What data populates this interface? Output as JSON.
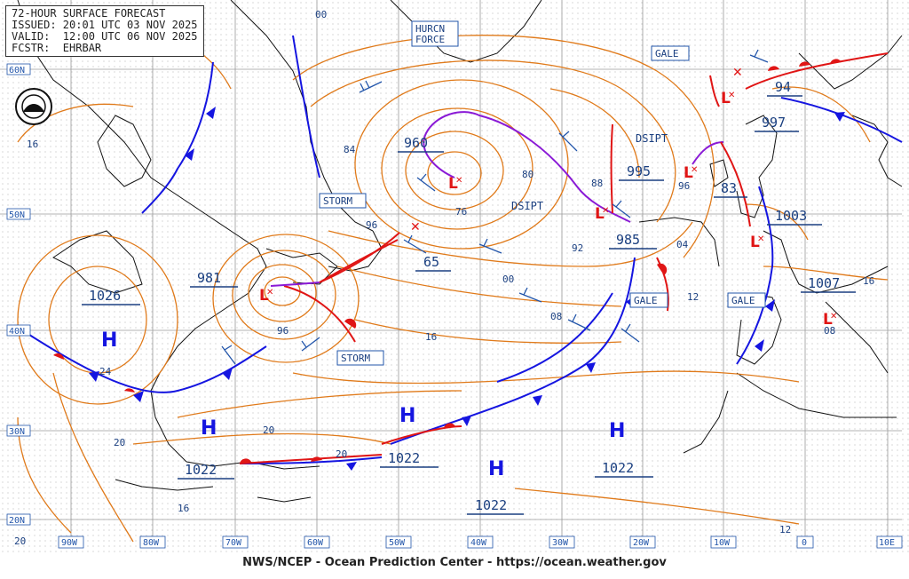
{
  "header": {
    "title": "72-HOUR SURFACE FORECAST",
    "issued": "ISSUED: 20:01 UTC 03 NOV 2025",
    "valid": "VALID:  12:00 UTC 06 NOV 2025",
    "forecaster": "FCSTR:  EHRBAR"
  },
  "footer": "NWS/NCEP - Ocean Prediction Center - https://ocean.weather.gov",
  "logo": "noaa-logo",
  "lat_labels": [
    "60N",
    "50N",
    "40N",
    "30N",
    "20N"
  ],
  "lon_labels": [
    "90W",
    "80W",
    "70W",
    "60W",
    "50W",
    "40W",
    "30W",
    "20W",
    "10W",
    "0",
    "10E"
  ],
  "pressure_centers": [
    {
      "type": "L",
      "value": "960"
    },
    {
      "type": "L",
      "value": "981"
    },
    {
      "type": "L",
      "value": "995"
    },
    {
      "type": "L",
      "value": "985"
    },
    {
      "type": "L",
      "value": "83"
    },
    {
      "type": "L",
      "value": "94"
    },
    {
      "type": "L",
      "value": "997"
    },
    {
      "type": "L",
      "value": "1003"
    },
    {
      "type": "L",
      "value": "1007"
    },
    {
      "type": "L",
      "value": "65"
    },
    {
      "type": "H",
      "value": "1026"
    },
    {
      "type": "H",
      "value": "1022"
    },
    {
      "type": "H",
      "value": "1022"
    },
    {
      "type": "H",
      "value": "1022"
    },
    {
      "type": "H",
      "value": "1022"
    }
  ],
  "warning_boxes": [
    "HURCN FORCE",
    "STORM",
    "STORM",
    "GALE",
    "GALE",
    "GALE"
  ],
  "annotations": [
    "DSIPT",
    "DSIPT"
  ],
  "isobar_labels": [
    "00",
    "84",
    "96",
    "76",
    "80",
    "88",
    "92",
    "00",
    "08",
    "16",
    "96",
    "04",
    "12",
    "16",
    "08",
    "24",
    "20",
    "20",
    "20",
    "16",
    "20",
    "12",
    "96"
  ],
  "colors": {
    "isobar": "#e07a1a",
    "cold_front": "#1515e0",
    "warm_front": "#e01515",
    "occluded_front": "#8a1ad6",
    "coast": "#111111",
    "grid": "#9a9a9a",
    "label_box": "#2255aa"
  }
}
